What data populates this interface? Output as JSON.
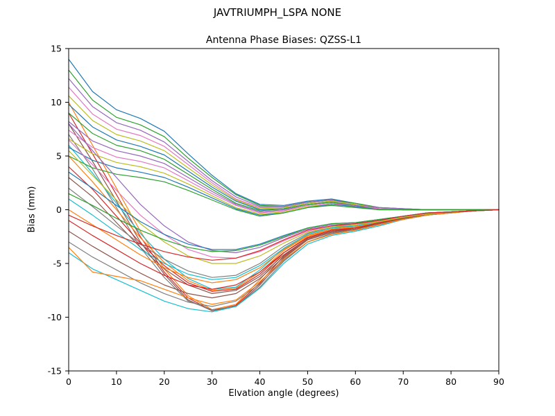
{
  "suptitle": "JAVTRIUMPH_LSPA NONE",
  "chart_data": {
    "type": "line",
    "title": "Antenna Phase Biases: QZSS-L1",
    "xlabel": "Elvation angle (degrees)",
    "ylabel": "Bias (mm)",
    "xlim": [
      0,
      90
    ],
    "ylim": [
      -15,
      15
    ],
    "xticks": [
      0,
      10,
      20,
      30,
      40,
      50,
      60,
      70,
      80,
      90
    ],
    "yticks": [
      -15,
      -10,
      -5,
      0,
      5,
      10,
      15
    ],
    "grid": false,
    "legend": "none",
    "x": [
      0,
      5,
      10,
      15,
      20,
      25,
      30,
      35,
      40,
      45,
      50,
      55,
      60,
      65,
      70,
      75,
      80,
      85,
      90
    ],
    "series": [
      {
        "color": "#1f77b4",
        "values": [
          14,
          11,
          9.3,
          8.5,
          7.3,
          5.2,
          3.2,
          1.5,
          0.5,
          0.4,
          0.8,
          1.0,
          0.6,
          0.2,
          0.1,
          0,
          0,
          0,
          0
        ]
      },
      {
        "color": "#ff7f0e",
        "values": [
          10,
          6,
          2,
          -2,
          -5.5,
          -8,
          -9.3,
          -8.8,
          -6.5,
          -4,
          -2.5,
          -1.8,
          -1.6,
          -1.2,
          -0.7,
          -0.4,
          -0.2,
          -0.1,
          0
        ]
      },
      {
        "color": "#2ca02c",
        "values": [
          13,
          10.2,
          8.6,
          7.9,
          6.8,
          4.8,
          3.0,
          1.4,
          0.4,
          0.3,
          0.7,
          0.9,
          0.6,
          0.2,
          0.1,
          0,
          0,
          0,
          0
        ]
      },
      {
        "color": "#d62728",
        "values": [
          9,
          5.2,
          1.4,
          -2.5,
          -5.8,
          -8.2,
          -9.4,
          -8.9,
          -6.8,
          -4.3,
          -2.7,
          -2.0,
          -1.7,
          -1.3,
          -0.8,
          -0.4,
          -0.2,
          -0.1,
          0
        ]
      },
      {
        "color": "#9467bd",
        "values": [
          12.2,
          9.6,
          8.1,
          7.4,
          6.3,
          4.5,
          2.7,
          1.2,
          0.3,
          0.3,
          0.7,
          0.9,
          0.5,
          0.2,
          0.1,
          0,
          0,
          0,
          0
        ]
      },
      {
        "color": "#8c564b",
        "values": [
          8,
          4.5,
          0.8,
          -3,
          -6,
          -8.4,
          -9.4,
          -9,
          -7,
          -4.5,
          -2.8,
          -2.1,
          -1.8,
          -1.3,
          -0.8,
          -0.5,
          -0.2,
          -0.1,
          0
        ]
      },
      {
        "color": "#e377c2",
        "values": [
          11.4,
          8.9,
          7.5,
          6.9,
          5.9,
          4.2,
          2.5,
          1.0,
          0.2,
          0.2,
          0.6,
          0.8,
          0.5,
          0.1,
          0,
          0,
          0,
          0,
          0
        ]
      },
      {
        "color": "#7f7f7f",
        "values": [
          7,
          3.8,
          0.2,
          -3.5,
          -6.3,
          -8.5,
          -9.3,
          -9,
          -7.2,
          -4.8,
          -3,
          -2.2,
          -1.9,
          -1.4,
          -0.9,
          -0.5,
          -0.3,
          -0.1,
          0
        ]
      },
      {
        "color": "#bcbd22",
        "values": [
          10.6,
          8.3,
          7.0,
          6.4,
          5.5,
          3.9,
          2.3,
          0.9,
          0.1,
          0.2,
          0.6,
          0.8,
          0.5,
          0.1,
          0,
          0,
          0,
          0,
          0
        ]
      },
      {
        "color": "#17becf",
        "values": [
          6,
          3.4,
          0.6,
          -2.2,
          -4.6,
          -6.4,
          -7.4,
          -7.2,
          -5.6,
          -3.6,
          -2.3,
          -1.7,
          -1.5,
          -1.1,
          -0.7,
          -0.4,
          -0.2,
          -0.1,
          0
        ]
      },
      {
        "color": "#1f77b4",
        "values": [
          9.8,
          7.7,
          6.5,
          5.9,
          5.1,
          3.6,
          2.1,
          0.8,
          0,
          0.1,
          0.5,
          0.7,
          0.4,
          0.1,
          0,
          0,
          0,
          0,
          0
        ]
      },
      {
        "color": "#ff7f0e",
        "values": [
          5,
          2.6,
          0,
          -2.6,
          -4.9,
          -6.6,
          -7.5,
          -7.3,
          -5.8,
          -3.8,
          -2.4,
          -1.8,
          -1.6,
          -1.2,
          -0.7,
          -0.4,
          -0.2,
          -0.1,
          0
        ]
      },
      {
        "color": "#2ca02c",
        "values": [
          9.0,
          7.1,
          6.0,
          5.5,
          4.7,
          3.3,
          1.9,
          0.6,
          -0.1,
          0.1,
          0.5,
          0.7,
          0.4,
          0.1,
          0,
          0,
          0,
          0,
          0
        ]
      },
      {
        "color": "#d62728",
        "values": [
          4,
          1.9,
          -0.6,
          -3.1,
          -5.2,
          -6.8,
          -7.6,
          -7.4,
          -6,
          -4,
          -2.6,
          -1.9,
          -1.7,
          -1.2,
          -0.8,
          -0.4,
          -0.2,
          -0.1,
          0
        ]
      },
      {
        "color": "#9467bd",
        "values": [
          8.2,
          6.4,
          5.5,
          5.0,
          4.3,
          3.0,
          1.7,
          0.5,
          -0.2,
          0,
          0.4,
          0.6,
          0.4,
          0.1,
          0,
          0,
          0,
          0,
          0
        ]
      },
      {
        "color": "#8c564b",
        "values": [
          3,
          1.2,
          -1.2,
          -3.5,
          -5.5,
          -7,
          -7.8,
          -7.5,
          -6.2,
          -4.2,
          -2.7,
          -2.0,
          -1.8,
          -1.3,
          -0.8,
          -0.5,
          -0.2,
          -0.1,
          0
        ]
      },
      {
        "color": "#e377c2",
        "values": [
          7.4,
          5.8,
          4.9,
          4.5,
          3.9,
          2.7,
          1.5,
          0.4,
          -0.3,
          -0.1,
          0.4,
          0.6,
          0.3,
          0.1,
          0,
          0,
          0,
          0,
          0
        ]
      },
      {
        "color": "#7f7f7f",
        "values": [
          2,
          0.3,
          -1.5,
          -3.2,
          -4.6,
          -5.7,
          -6.3,
          -6.1,
          -5,
          -3.4,
          -2.2,
          -1.6,
          -1.5,
          -1.1,
          -0.7,
          -0.4,
          -0.2,
          -0.1,
          0
        ]
      },
      {
        "color": "#bcbd22",
        "values": [
          6.6,
          5.2,
          4.4,
          4.0,
          3.4,
          2.4,
          1.3,
          0.2,
          -0.4,
          -0.2,
          0.3,
          0.5,
          0.3,
          0,
          0,
          0,
          0,
          0,
          0
        ]
      },
      {
        "color": "#17becf",
        "values": [
          1,
          -0.5,
          -2.1,
          -3.7,
          -5,
          -6,
          -6.5,
          -6.3,
          -5.2,
          -3.6,
          -2.3,
          -1.7,
          -1.5,
          -1.1,
          -0.7,
          -0.4,
          -0.2,
          -0.1,
          0
        ]
      },
      {
        "color": "#1f77b4",
        "values": [
          5.8,
          4.6,
          3.9,
          3.5,
          3.0,
          2.1,
          1.1,
          0.1,
          -0.5,
          -0.3,
          0.2,
          0.5,
          0.3,
          0,
          0,
          0,
          0,
          0,
          0
        ]
      },
      {
        "color": "#ff7f0e",
        "values": [
          0,
          -1.4,
          -2.8,
          -4.2,
          -5.4,
          -6.3,
          -6.8,
          -6.5,
          -5.4,
          -3.7,
          -2.4,
          -1.8,
          -1.6,
          -1.2,
          -0.7,
          -0.4,
          -0.2,
          -0.1,
          0
        ]
      },
      {
        "color": "#2ca02c",
        "values": [
          5.0,
          3.9,
          3.3,
          3.0,
          2.6,
          1.8,
          0.9,
          0,
          -0.6,
          -0.3,
          0.2,
          0.4,
          0.2,
          0,
          0,
          0,
          0,
          0,
          0
        ]
      },
      {
        "color": "#d62728",
        "values": [
          -1,
          -2.4,
          -3.7,
          -5,
          -6.1,
          -7,
          -7.4,
          -7,
          -5.8,
          -4,
          -2.6,
          -1.9,
          -1.7,
          -1.2,
          -0.8,
          -0.4,
          -0.2,
          -0.1,
          0
        ]
      },
      {
        "color": "#9467bd",
        "values": [
          8,
          5.5,
          3,
          0.5,
          -1.5,
          -3,
          -3.8,
          -4,
          -3.5,
          -2.6,
          -1.8,
          -1.4,
          -1.3,
          -1,
          -0.6,
          -0.3,
          -0.2,
          -0.1,
          0
        ]
      },
      {
        "color": "#8c564b",
        "values": [
          -2,
          -3.4,
          -4.7,
          -5.9,
          -7,
          -7.8,
          -8.2,
          -7.8,
          -6.4,
          -4.4,
          -2.8,
          -2.1,
          -1.8,
          -1.3,
          -0.8,
          -0.5,
          -0.2,
          -0.1,
          0
        ]
      },
      {
        "color": "#e377c2",
        "values": [
          6.5,
          4.2,
          1.8,
          -0.5,
          -2.3,
          -3.7,
          -4.4,
          -4.5,
          -3.9,
          -2.9,
          -2,
          -1.5,
          -1.4,
          -1,
          -0.6,
          -0.3,
          -0.2,
          -0.1,
          0
        ]
      },
      {
        "color": "#7f7f7f",
        "values": [
          -3,
          -4.4,
          -5.6,
          -6.8,
          -7.8,
          -8.6,
          -9,
          -8.5,
          -6.9,
          -4.7,
          -3,
          -2.2,
          -1.9,
          -1.4,
          -0.9,
          -0.5,
          -0.3,
          -0.1,
          0
        ]
      },
      {
        "color": "#bcbd22",
        "values": [
          5.5,
          3.2,
          0.9,
          -1.3,
          -3,
          -4.3,
          -5,
          -5,
          -4.3,
          -3.1,
          -2.1,
          -1.6,
          -1.4,
          -1.1,
          -0.7,
          -0.4,
          -0.2,
          -0.1,
          0
        ]
      },
      {
        "color": "#17becf",
        "values": [
          -4,
          -5.5,
          -6.5,
          -7.5,
          -8.5,
          -9.2,
          -9.5,
          -9,
          -7.3,
          -5,
          -3.2,
          -2.4,
          -2,
          -1.5,
          -0.9,
          -0.5,
          -0.3,
          -0.1,
          0
        ]
      },
      {
        "color": "#1f77b4",
        "values": [
          3.5,
          2,
          0.4,
          -1.1,
          -2.3,
          -3.2,
          -3.7,
          -3.7,
          -3.2,
          -2.4,
          -1.7,
          -1.3,
          -1.2,
          -0.9,
          -0.6,
          -0.3,
          -0.2,
          -0.1,
          0
        ]
      },
      {
        "color": "#ff7f0e",
        "values": [
          -3.5,
          -5.8,
          -6.2,
          -6.6,
          -7.4,
          -8.2,
          -8.8,
          -8.4,
          -6.7,
          -4.6,
          -3,
          -2.3,
          -1.9,
          -1.4,
          -0.9,
          -0.5,
          -0.3,
          -0.1,
          0
        ]
      },
      {
        "color": "#2ca02c",
        "values": [
          1.5,
          0.4,
          -0.8,
          -1.9,
          -2.8,
          -3.5,
          -3.9,
          -3.8,
          -3.3,
          -2.5,
          -1.7,
          -1.3,
          -1.2,
          -0.9,
          -0.6,
          -0.3,
          -0.2,
          -0.1,
          0
        ]
      },
      {
        "color": "#d62728",
        "values": [
          -0.5,
          -1.5,
          -2.4,
          -3.2,
          -3.9,
          -4.4,
          -4.7,
          -4.5,
          -3.8,
          -2.8,
          -1.9,
          -1.5,
          -1.3,
          -1,
          -0.6,
          -0.3,
          -0.2,
          -0.1,
          0
        ]
      }
    ]
  }
}
